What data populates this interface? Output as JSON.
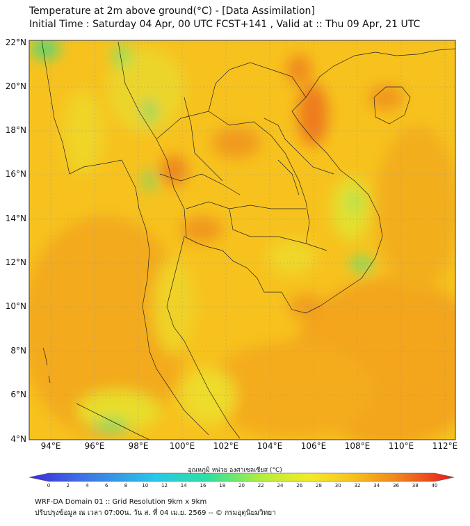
{
  "header": {
    "title_line1": "Temperature at 2m above ground(°C) - [Data Assimilation]",
    "title_line2": "Initial Time : Saturday 04 Apr, 00 UTC FCST+141 , Valid at :: Thu 09 Apr, 21 UTC"
  },
  "map": {
    "lat_labels": [
      "22°N",
      "20°N",
      "18°N",
      "16°N",
      "14°N",
      "12°N",
      "10°N",
      "8°N",
      "6°N",
      "4°N"
    ],
    "lon_labels": [
      "94°E",
      "96°E",
      "98°E",
      "100°E",
      "102°E",
      "104°E",
      "106°E",
      "108°E",
      "110°E",
      "112°E"
    ],
    "lat_range": [
      4,
      22.2
    ],
    "lon_range": [
      93,
      112.5
    ],
    "colors": {
      "base": "#f7c21e",
      "warm": "#f3a51c",
      "hot": "#ee7b1d",
      "cool": "#e9e32a",
      "green": "#5fd46e",
      "border": "#222222",
      "grid": "#9a9a9a"
    }
  },
  "colorbar": {
    "label": "อุณหภูมิ หน่วย องศาเซลเซียส (°C)",
    "ticks": [
      "0",
      "2",
      "4",
      "6",
      "8",
      "10",
      "12",
      "14",
      "16",
      "18",
      "20",
      "22",
      "24",
      "26",
      "28",
      "30",
      "32",
      "34",
      "36",
      "38",
      "40"
    ],
    "range": [
      0,
      40
    ]
  },
  "footer": {
    "line1": "WRF-DA Domain 01 :: Grid Resolution 9km x 9km",
    "line2": "ปรับปรุงข้อมูล ณ เวลา 07:00น. วัน ส. ที่ 04 เม.ย. 2569 -- © กรมอุตุนิยมวิทยา"
  }
}
